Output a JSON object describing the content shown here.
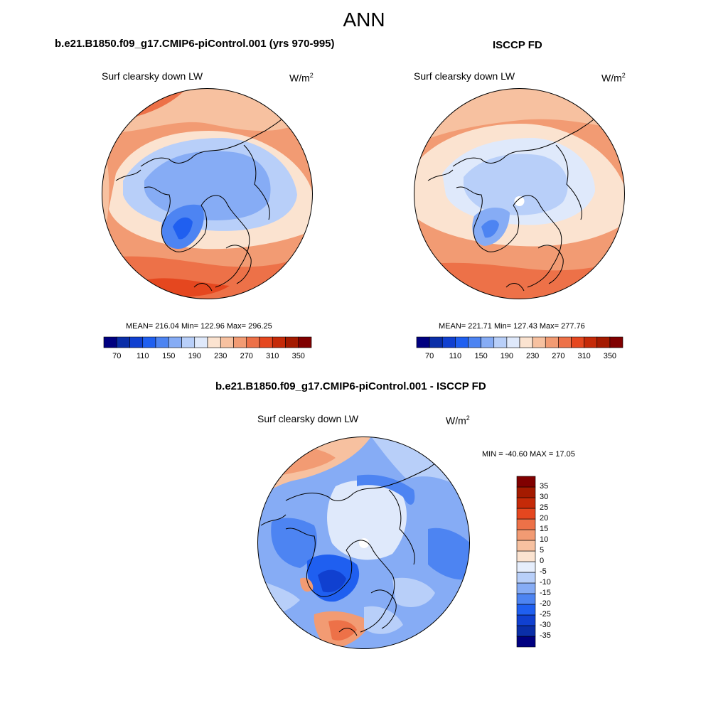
{
  "header": {
    "title": "ANN"
  },
  "panels": [
    {
      "title": "b.e21.B1850.f09_g17.CMIP6-piControl.001 (yrs 970-995)",
      "variable": "Surf clearsky down LW",
      "units_base": "W/m",
      "units_exp": "2",
      "stats": "MEAN= 216.04  Min= 122.96  Max= 296.25"
    },
    {
      "title": "ISCCP FD",
      "variable": "Surf clearsky down LW",
      "units_base": "W/m",
      "units_exp": "2",
      "stats": "MEAN= 221.71  Min= 127.43  Max= 277.76"
    },
    {
      "title": "b.e21.B1850.f09_g17.CMIP6-piControl.001 - ISCCP FD",
      "variable": "Surf clearsky down LW",
      "units_base": "W/m",
      "units_exp": "2",
      "stats": "MIN = -40.60 MAX =  17.05"
    }
  ],
  "colorbar_abs": {
    "colors": [
      "#000080",
      "#0a2ea8",
      "#1040d0",
      "#1f5ff0",
      "#4d84f2",
      "#86acf5",
      "#b8cff9",
      "#dfe9fb",
      "#fbe3d0",
      "#f7c1a0",
      "#f29b73",
      "#ed7148",
      "#e5471f",
      "#c52a08",
      "#a41a00",
      "#800000"
    ],
    "labels": [
      "70",
      "110",
      "150",
      "190",
      "230",
      "270",
      "310",
      "350"
    ]
  },
  "colorbar_diff": {
    "colors": [
      "#000080",
      "#0a2ea8",
      "#1040d0",
      "#1f5ff0",
      "#4d84f2",
      "#86acf5",
      "#b8cff9",
      "#e6eefc",
      "#fbe3d0",
      "#f7c1a0",
      "#f29b73",
      "#ed7148",
      "#e5471f",
      "#c52a08",
      "#a41a00",
      "#800000"
    ],
    "labels": [
      "35",
      "30",
      "25",
      "20",
      "15",
      "10",
      "5",
      "0",
      "-5",
      "-10",
      "-15",
      "-20",
      "-25",
      "-30",
      "-35"
    ]
  },
  "chart_data": [
    {
      "type": "heatmap",
      "projection": "north polar stereographic",
      "title": "b.e21.B1850.f09_g17.CMIP6-piControl.001 (yrs 970-995)",
      "variable": "Surf clearsky down LW",
      "units": "W/m2",
      "mean": 216.04,
      "min": 122.96,
      "max": 296.25,
      "levels": [
        70,
        90,
        110,
        130,
        150,
        170,
        190,
        210,
        230,
        250,
        270,
        290,
        310,
        330,
        350
      ]
    },
    {
      "type": "heatmap",
      "projection": "north polar stereographic",
      "title": "ISCCP FD",
      "variable": "Surf clearsky down LW",
      "units": "W/m2",
      "mean": 221.71,
      "min": 127.43,
      "max": 277.76,
      "levels": [
        70,
        90,
        110,
        130,
        150,
        170,
        190,
        210,
        230,
        250,
        270,
        290,
        310,
        330,
        350
      ]
    },
    {
      "type": "heatmap",
      "projection": "north polar stereographic",
      "title": "b.e21.B1850.f09_g17.CMIP6-piControl.001 - ISCCP FD",
      "variable": "Surf clearsky down LW",
      "units": "W/m2",
      "min": -40.6,
      "max": 17.05,
      "levels": [
        -35,
        -30,
        -25,
        -20,
        -15,
        -10,
        -5,
        0,
        5,
        10,
        15,
        20,
        25,
        30,
        35
      ]
    }
  ]
}
